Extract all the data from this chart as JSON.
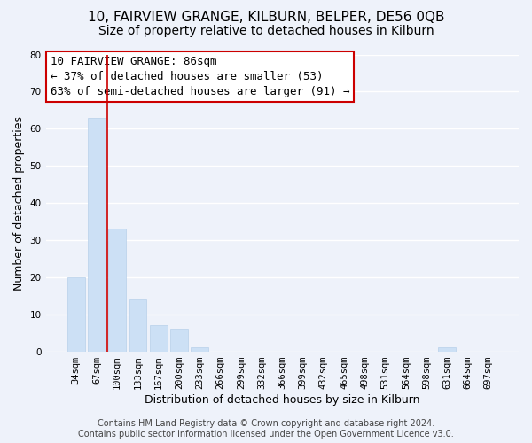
{
  "title": "10, FAIRVIEW GRANGE, KILBURN, BELPER, DE56 0QB",
  "subtitle": "Size of property relative to detached houses in Kilburn",
  "xlabel": "Distribution of detached houses by size in Kilburn",
  "ylabel": "Number of detached properties",
  "bar_labels": [
    "34sqm",
    "67sqm",
    "100sqm",
    "133sqm",
    "167sqm",
    "200sqm",
    "233sqm",
    "266sqm",
    "299sqm",
    "332sqm",
    "366sqm",
    "399sqm",
    "432sqm",
    "465sqm",
    "498sqm",
    "531sqm",
    "564sqm",
    "598sqm",
    "631sqm",
    "664sqm",
    "697sqm"
  ],
  "bar_values": [
    20,
    63,
    33,
    14,
    7,
    6,
    1,
    0,
    0,
    0,
    0,
    0,
    0,
    0,
    0,
    0,
    0,
    0,
    1,
    0,
    0
  ],
  "bar_color": "#cce0f5",
  "bar_edge_color": "#b8d0ea",
  "highlight_line_color": "#cc0000",
  "ylim": [
    0,
    80
  ],
  "yticks": [
    0,
    10,
    20,
    30,
    40,
    50,
    60,
    70,
    80
  ],
  "annotation_line1": "10 FAIRVIEW GRANGE: 86sqm",
  "annotation_line2": "← 37% of detached houses are smaller (53)",
  "annotation_line3": "63% of semi-detached houses are larger (91) →",
  "footer_text": "Contains HM Land Registry data © Crown copyright and database right 2024.\nContains public sector information licensed under the Open Government Licence v3.0.",
  "background_color": "#eef2fa",
  "grid_color": "#ffffff",
  "title_fontsize": 11,
  "subtitle_fontsize": 10,
  "axis_label_fontsize": 9,
  "tick_fontsize": 7.5,
  "annotation_fontsize": 9,
  "footer_fontsize": 7
}
